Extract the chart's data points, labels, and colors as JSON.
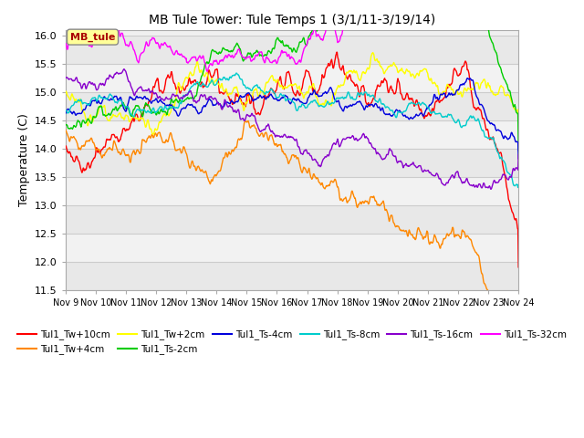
{
  "title": "MB Tule Tower: Tule Temps 1 (3/1/11-3/19/14)",
  "ylabel": "Temperature (C)",
  "ylim": [
    11.5,
    16.1
  ],
  "xlim": [
    0,
    15
  ],
  "xtick_labels": [
    "Nov 9",
    "Nov 10",
    "Nov 11",
    "Nov 12",
    "Nov 13",
    "Nov 14",
    "Nov 15",
    "Nov 16",
    "Nov 17",
    "Nov 18",
    "Nov 19",
    "Nov 20",
    "Nov 21",
    "Nov 22",
    "Nov 23",
    "Nov 24"
  ],
  "ytick_values": [
    11.5,
    12.0,
    12.5,
    13.0,
    13.5,
    14.0,
    14.5,
    15.0,
    15.5,
    16.0
  ],
  "band_colors": [
    "#e8e8e8",
    "#f2f2f2"
  ],
  "series": [
    {
      "label": "Tul1_Tw+10cm",
      "color": "#ff0000"
    },
    {
      "label": "Tul1_Tw+4cm",
      "color": "#ff8800"
    },
    {
      "label": "Tul1_Tw+2cm",
      "color": "#ffff00"
    },
    {
      "label": "Tul1_Ts-2cm",
      "color": "#00cc00"
    },
    {
      "label": "Tul1_Ts-4cm",
      "color": "#0000dd"
    },
    {
      "label": "Tul1_Ts-8cm",
      "color": "#00cccc"
    },
    {
      "label": "Tul1_Ts-16cm",
      "color": "#8800cc"
    },
    {
      "label": "Tul1_Ts-32cm",
      "color": "#ff00ff"
    }
  ],
  "annotation_label": "MB_tule",
  "n_points": 1000
}
